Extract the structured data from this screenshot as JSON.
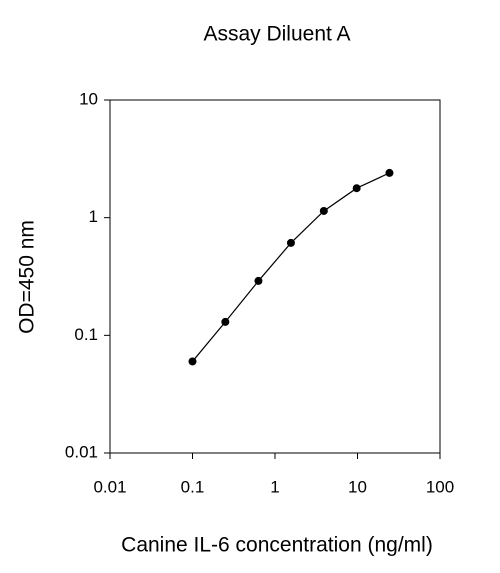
{
  "chart_data": {
    "type": "line",
    "title": "Assay Diluent A",
    "x_label": "Canine IL-6 concentration (ng/ml)",
    "y_label": "OD=450 nm",
    "x": [
      0.1,
      0.25,
      0.63,
      1.56,
      3.91,
      9.77,
      24.4
    ],
    "series": [
      {
        "color": "#000000",
        "values": [
          0.06,
          0.13,
          0.29,
          0.61,
          1.14,
          1.78,
          2.4
        ]
      }
    ],
    "xscale": "log",
    "yscale": "log",
    "xlim": [
      0.01,
      100
    ],
    "ylim": [
      0.01,
      10
    ],
    "xticks": [
      0.01,
      0.1,
      1,
      10,
      100
    ],
    "yticks": [
      0.01,
      0.1,
      1,
      10
    ],
    "markers": true
  }
}
